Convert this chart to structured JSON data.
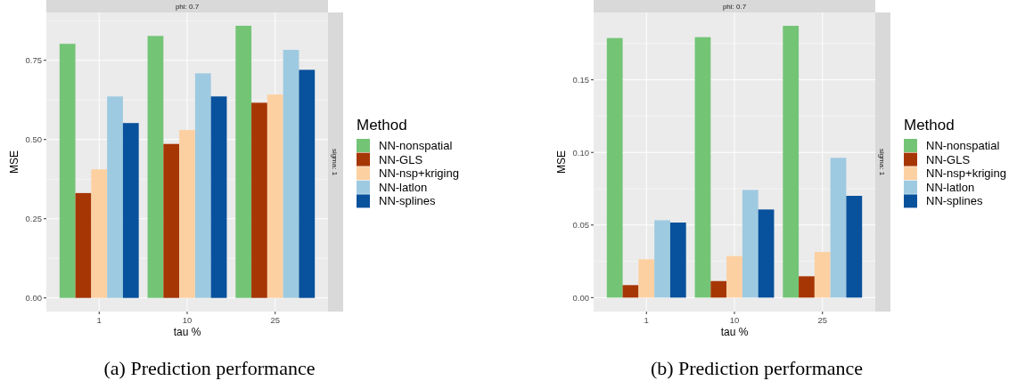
{
  "chart_data": [
    {
      "type": "bar",
      "title": "(a) Prediction performance",
      "xlabel": "tau %",
      "ylabel": "MSE",
      "legend_title": "Method",
      "legend": "right",
      "grid": true,
      "annotations": [
        "phi: 0.7",
        "sigma: 1"
      ],
      "categories": [
        "1",
        "10",
        "25"
      ],
      "ylim": [
        -0.043,
        0.901
      ],
      "yticks": [
        {
          "value": 0,
          "label": "0.00"
        },
        {
          "value": 0.25,
          "label": "0.25"
        },
        {
          "value": 0.5,
          "label": "0.50"
        },
        {
          "value": 0.75,
          "label": "0.75"
        }
      ],
      "series": [
        {
          "name": "NN-nonspatial",
          "color": "#74c476",
          "values": [
            0.802,
            0.827,
            0.859
          ]
        },
        {
          "name": "NN-GLS",
          "color": "#a63603",
          "values": [
            0.331,
            0.486,
            0.616
          ]
        },
        {
          "name": "NN-nsp+kriging",
          "color": "#fdd0a2",
          "values": [
            0.406,
            0.53,
            0.642
          ]
        },
        {
          "name": "NN-latlon",
          "color": "#9ecae1",
          "values": [
            0.636,
            0.709,
            0.783
          ]
        },
        {
          "name": "NN-splines",
          "color": "#08519c",
          "values": [
            0.552,
            0.636,
            0.72
          ]
        }
      ]
    },
    {
      "type": "bar",
      "title": "(b) Prediction performance",
      "xlabel": "tau %",
      "ylabel": "MSE",
      "legend_title": "Method",
      "legend": "right",
      "grid": true,
      "annotations": [
        "phi: 0.7",
        "sigma: 1"
      ],
      "categories": [
        "1",
        "10",
        "25"
      ],
      "ylim": [
        -0.0096,
        0.1964
      ],
      "yticks": [
        {
          "value": 0,
          "label": "0.00"
        },
        {
          "value": 0.05,
          "label": "0.05"
        },
        {
          "value": 0.1,
          "label": "0.10"
        },
        {
          "value": 0.15,
          "label": "0.15"
        }
      ],
      "series": [
        {
          "name": "NN-nonspatial",
          "color": "#74c476",
          "values": [
            0.1788,
            0.1794,
            0.1872
          ]
        },
        {
          "name": "NN-GLS",
          "color": "#a63603",
          "values": [
            0.0086,
            0.0114,
            0.0147
          ]
        },
        {
          "name": "NN-nsp+kriging",
          "color": "#fdd0a2",
          "values": [
            0.0264,
            0.0286,
            0.0315
          ]
        },
        {
          "name": "NN-latlon",
          "color": "#9ecae1",
          "values": [
            0.0533,
            0.0742,
            0.0963
          ]
        },
        {
          "name": "NN-splines",
          "color": "#08519c",
          "values": [
            0.0517,
            0.0607,
            0.0701
          ]
        }
      ]
    }
  ]
}
